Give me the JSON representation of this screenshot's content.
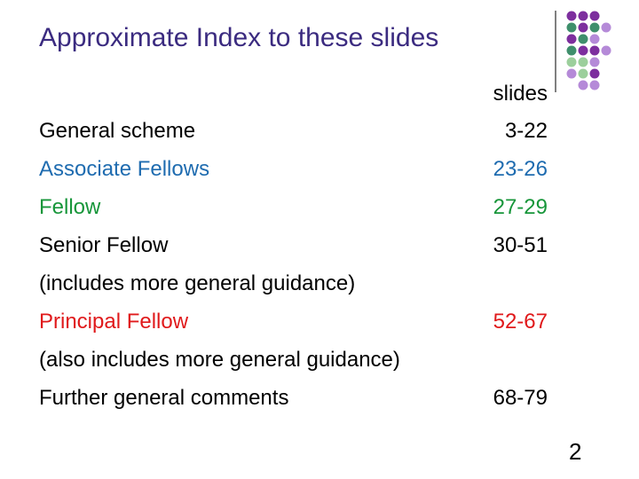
{
  "title": "Approximate Index to these slides",
  "index": {
    "column_header": "slides",
    "rows": [
      {
        "label": "General scheme",
        "slides": "3-22"
      },
      {
        "label": "Associate Fellows",
        "slides": "23-26"
      },
      {
        "label": "Fellow",
        "slides": "27-29"
      },
      {
        "label": "Senior Fellow",
        "slides": "30-51"
      },
      {
        "label": "(includes more general guidance)"
      },
      {
        "label": "Principal Fellow",
        "slides": "52-67"
      },
      {
        "label": "(also includes more general guidance)"
      },
      {
        "label": "Further general comments",
        "slides": "68-79"
      }
    ]
  },
  "page_number": "2"
}
